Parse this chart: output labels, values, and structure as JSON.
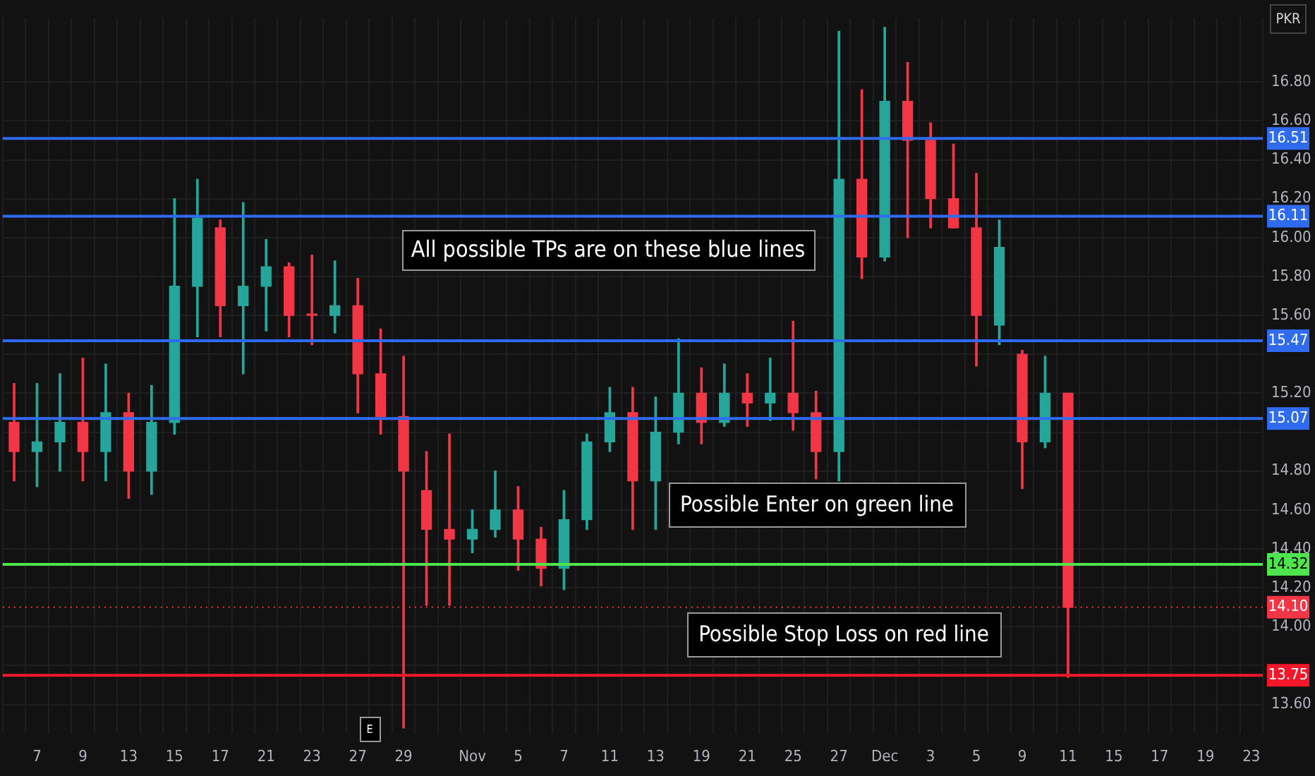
{
  "chart_data": {
    "type": "candlestick",
    "ylabel": "PKR",
    "categories": [
      null,
      "7",
      null,
      "9",
      null,
      "13",
      null,
      "15",
      null,
      "17",
      null,
      "21",
      null,
      "23",
      null,
      "27",
      null,
      "29",
      null,
      null,
      "Nov",
      null,
      "5",
      null,
      "7",
      null,
      "11",
      null,
      "13",
      null,
      "19",
      null,
      "21",
      null,
      "25",
      null,
      "27",
      null,
      "Dec",
      null,
      "3",
      null,
      "5",
      null,
      "9",
      null,
      "11",
      null,
      "15",
      null,
      "17",
      null,
      "19",
      null,
      "23"
    ],
    "ohlc": [
      [
        15.05,
        15.25,
        14.75,
        14.9
      ],
      [
        14.9,
        15.25,
        14.72,
        14.95
      ],
      [
        14.95,
        15.3,
        14.8,
        15.05
      ],
      [
        15.05,
        15.38,
        14.75,
        14.9
      ],
      [
        14.9,
        15.35,
        14.75,
        15.1
      ],
      [
        15.1,
        15.2,
        14.66,
        14.8
      ],
      [
        14.8,
        15.24,
        14.68,
        15.05
      ],
      [
        15.05,
        16.2,
        14.99,
        15.75
      ],
      [
        15.75,
        16.3,
        15.49,
        16.1
      ],
      [
        16.05,
        16.09,
        15.49,
        15.65
      ],
      [
        15.65,
        16.18,
        15.3,
        15.75
      ],
      [
        15.75,
        15.99,
        15.52,
        15.85
      ],
      [
        15.85,
        15.87,
        15.49,
        15.6
      ],
      [
        15.6,
        15.91,
        15.45,
        15.6
      ],
      [
        15.6,
        15.88,
        15.51,
        15.65
      ],
      [
        15.65,
        15.79,
        15.1,
        15.3
      ],
      [
        15.3,
        15.53,
        14.99,
        15.08
      ],
      [
        15.08,
        15.39,
        13.48,
        14.8
      ],
      [
        14.7,
        14.9,
        14.11,
        14.5
      ],
      [
        14.5,
        14.99,
        14.11,
        14.45
      ],
      [
        14.45,
        14.6,
        14.38,
        14.5
      ],
      [
        14.5,
        14.8,
        14.46,
        14.6
      ],
      [
        14.6,
        14.72,
        14.29,
        14.45
      ],
      [
        14.45,
        14.51,
        14.21,
        14.3
      ],
      [
        14.3,
        14.7,
        14.19,
        14.55
      ],
      [
        14.55,
        14.99,
        14.5,
        14.95
      ],
      [
        14.95,
        15.23,
        14.9,
        15.1
      ],
      [
        15.1,
        15.23,
        14.5,
        14.75
      ],
      [
        14.75,
        15.18,
        14.5,
        15.0
      ],
      [
        15.0,
        15.48,
        14.94,
        15.2
      ],
      [
        15.2,
        15.33,
        14.94,
        15.05
      ],
      [
        15.05,
        15.35,
        15.03,
        15.2
      ],
      [
        15.2,
        15.3,
        15.03,
        15.15
      ],
      [
        15.15,
        15.38,
        15.06,
        15.2
      ],
      [
        15.2,
        15.57,
        15.01,
        15.1
      ],
      [
        15.1,
        15.21,
        14.76,
        14.9
      ],
      [
        14.9,
        17.06,
        14.75,
        16.3
      ],
      [
        16.3,
        16.76,
        15.79,
        15.9
      ],
      [
        15.9,
        17.08,
        15.88,
        16.7
      ],
      [
        16.7,
        16.9,
        16.0,
        16.5
      ],
      [
        16.5,
        16.59,
        16.05,
        16.2
      ],
      [
        16.2,
        16.48,
        16.05,
        16.05
      ],
      [
        16.05,
        16.33,
        15.34,
        15.6
      ],
      [
        15.55,
        16.09,
        15.45,
        15.95
      ],
      [
        15.4,
        15.42,
        14.71,
        14.95
      ],
      [
        14.95,
        15.39,
        14.92,
        15.2
      ],
      [
        15.2,
        15.2,
        13.74,
        14.1
      ],
      null,
      null,
      null,
      null,
      null,
      null,
      null,
      null
    ],
    "colors": [
      "#f23645",
      "#26a69a",
      "#26a69a",
      "#f23645",
      "#26a69a",
      "#f23645",
      "#26a69a",
      "#26a69a",
      "#26a69a",
      "#f23645",
      "#26a69a",
      "#26a69a",
      "#f23645",
      "#f23645",
      "#26a69a",
      "#f23645",
      "#f23645",
      "#f23645",
      "#f23645",
      "#f23645",
      "#26a69a",
      "#26a69a",
      "#f23645",
      "#f23645",
      "#26a69a",
      "#26a69a",
      "#26a69a",
      "#f23645",
      "#26a69a",
      "#26a69a",
      "#f23645",
      "#26a69a",
      "#f23645",
      "#26a69a",
      "#f23645",
      "#f23645",
      "#26a69a",
      "#f23645",
      "#26a69a",
      "#f23645",
      "#f23645",
      "#f23645",
      "#f23645",
      "#26a69a",
      "#f23645",
      "#26a69a",
      "#f23645",
      null,
      null,
      null,
      null,
      null,
      null,
      null,
      null
    ],
    "ylim": [
      13.45,
      17.13
    ],
    "yticks": [
      {
        "value": 13.6,
        "label": "13.60"
      },
      {
        "value": 13.8,
        "label": null
      },
      {
        "value": 14.0,
        "label": "14.00"
      },
      {
        "value": 14.2,
        "label": "14.20"
      },
      {
        "value": 14.4,
        "label": "14.40"
      },
      {
        "value": 14.6,
        "label": "14.60"
      },
      {
        "value": 14.8,
        "label": "14.80"
      },
      {
        "value": 15.0,
        "label": null
      },
      {
        "value": 15.2,
        "label": "15.20"
      },
      {
        "value": 15.4,
        "label": null
      },
      {
        "value": 15.6,
        "label": "15.60"
      },
      {
        "value": 15.8,
        "label": "15.80"
      },
      {
        "value": 16.0,
        "label": "16.00"
      },
      {
        "value": 16.2,
        "label": "16.20"
      },
      {
        "value": 16.4,
        "label": "16.40"
      },
      {
        "value": 16.6,
        "label": "16.60"
      },
      {
        "value": 16.8,
        "label": "16.80"
      }
    ],
    "grid": true,
    "ref_lines": [
      {
        "axis": "y",
        "value": 16.51,
        "label": "16.51",
        "color": "#2f6bf0"
      },
      {
        "axis": "y",
        "value": 16.11,
        "label": "16.11",
        "color": "#2f6bf0"
      },
      {
        "axis": "y",
        "value": 15.47,
        "label": "15.47",
        "color": "#2f6bf0"
      },
      {
        "axis": "y",
        "value": 15.07,
        "label": "15.07",
        "color": "#2f6bf0"
      },
      {
        "axis": "y",
        "value": 14.32,
        "label": "14.32",
        "color": "#4ee44e"
      },
      {
        "axis": "y",
        "value": 14.1,
        "label": "14.10",
        "color": "#f23645",
        "line_style": "dotted"
      },
      {
        "axis": "y",
        "value": 13.75,
        "label": "13.75",
        "color": "#f7172b"
      }
    ],
    "annotations": [
      "All possible TPs are on these blue lines",
      "Possible Enter on green line",
      "Possible Stop Loss on red line",
      "E"
    ]
  }
}
